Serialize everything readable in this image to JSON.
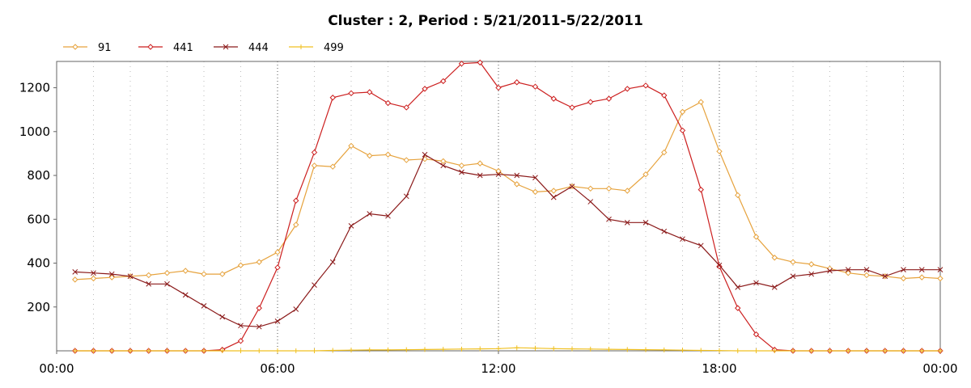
{
  "chart_data": {
    "type": "line",
    "title": "Cluster : 2, Period : 5/21/2011-5/22/2011",
    "xlabel": "",
    "ylabel": "",
    "x_range_hours": [
      0,
      24
    ],
    "ylim": [
      0,
      1320
    ],
    "x_ticks": [
      "00:00",
      "06:00",
      "12:00",
      "18:00",
      "00:00"
    ],
    "y_ticks": [
      200,
      400,
      600,
      800,
      1000,
      1200
    ],
    "grid": "vertical dotted",
    "legend_position": "top-left",
    "x": [
      0.5,
      1,
      1.5,
      2,
      2.5,
      3,
      3.5,
      4,
      4.5,
      5,
      5.5,
      6,
      6.5,
      7,
      7.5,
      8,
      8.5,
      9,
      9.5,
      10,
      10.5,
      11,
      11.5,
      12,
      12.5,
      13,
      13.5,
      14,
      14.5,
      15,
      15.5,
      16,
      16.5,
      17,
      17.5,
      18,
      18.5,
      19,
      19.5,
      20,
      20.5,
      21,
      21.5,
      22,
      22.5,
      23,
      23.5,
      24
    ],
    "series": [
      {
        "name": "91",
        "color": "#e6a23c",
        "marker": "diamond",
        "values": [
          325,
          330,
          335,
          340,
          345,
          355,
          365,
          350,
          350,
          390,
          405,
          450,
          575,
          845,
          840,
          935,
          890,
          895,
          870,
          875,
          865,
          845,
          855,
          820,
          760,
          725,
          730,
          750,
          740,
          740,
          730,
          805,
          905,
          1090,
          1135,
          910,
          710,
          520,
          425,
          405,
          395,
          375,
          355,
          345,
          340,
          330,
          335,
          330
        ]
      },
      {
        "name": "441",
        "color": "#cc1f1f",
        "marker": "diamond",
        "values": [
          0,
          0,
          0,
          0,
          0,
          0,
          0,
          0,
          5,
          45,
          195,
          380,
          685,
          905,
          1155,
          1175,
          1180,
          1130,
          1110,
          1195,
          1230,
          1310,
          1315,
          1200,
          1225,
          1205,
          1150,
          1110,
          1135,
          1150,
          1195,
          1210,
          1165,
          1005,
          735,
          385,
          195,
          75,
          5,
          0,
          0,
          0,
          0,
          0,
          0,
          0,
          0,
          0
        ]
      },
      {
        "name": "444",
        "color": "#8b1a1a",
        "marker": "x",
        "values": [
          360,
          355,
          350,
          340,
          305,
          305,
          255,
          205,
          155,
          115,
          110,
          135,
          190,
          300,
          405,
          570,
          625,
          615,
          705,
          895,
          845,
          815,
          800,
          805,
          800,
          790,
          700,
          750,
          680,
          600,
          585,
          585,
          545,
          510,
          480,
          390,
          290,
          310,
          290,
          340,
          350,
          365,
          370,
          370,
          340,
          370,
          370,
          370
        ]
      },
      {
        "name": "499",
        "color": "#f0c020",
        "marker": "plus",
        "values": [
          0,
          0,
          0,
          0,
          0,
          0,
          0,
          0,
          0,
          0,
          0,
          0,
          0,
          0,
          2,
          3,
          4,
          4,
          5,
          6,
          7,
          8,
          9,
          10,
          14,
          12,
          10,
          9,
          8,
          7,
          6,
          5,
          4,
          3,
          2,
          1,
          0,
          0,
          0,
          0,
          0,
          0,
          0,
          0,
          0,
          0,
          0,
          0
        ]
      }
    ]
  }
}
